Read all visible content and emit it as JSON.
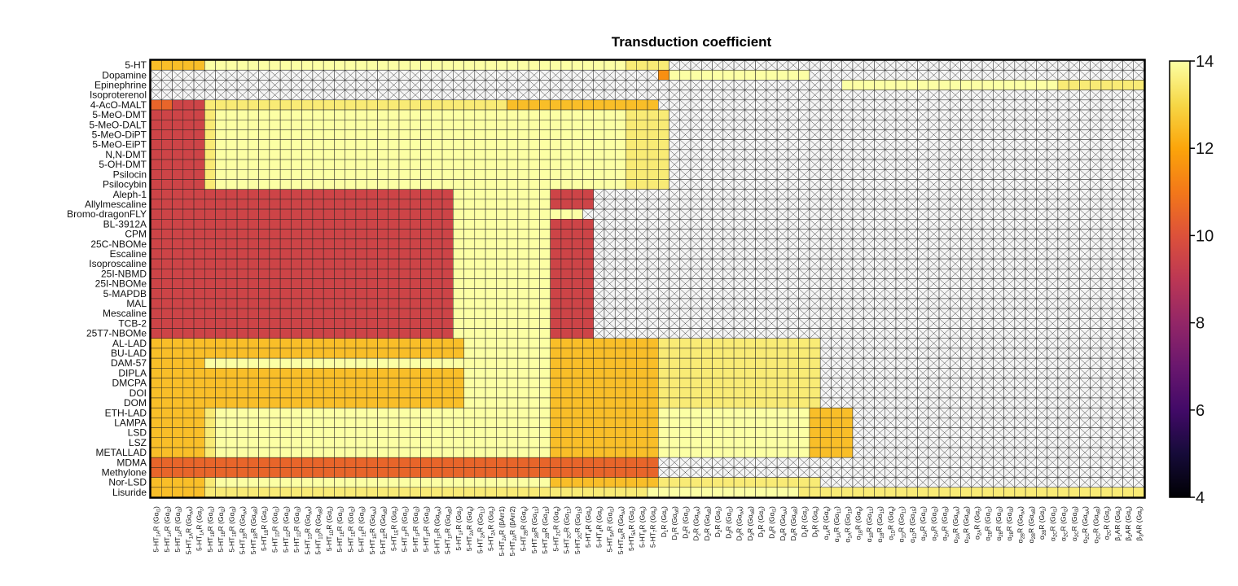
{
  "chart_data": {
    "type": "heatmap",
    "title": "Transduction coefficient",
    "colorbar": {
      "min": 4,
      "max": 14,
      "ticks": [
        4,
        6,
        8,
        10,
        12,
        14
      ],
      "colormap": "inferno",
      "missing": "white cell with black X"
    },
    "rows": [
      "5-HT",
      "Dopamine",
      "Epinephrine",
      "Isoproterenol",
      "4-AcO-MALT",
      "5-MeO-DMT",
      "5-MeO-DALT",
      "5-MeO-DiPT",
      "5-MeO-EiPT",
      "N,N-DMT",
      "5-OH-DMT",
      "Psilocin",
      "Psilocybin",
      "Aleph-1",
      "Allylmescaline",
      "Bromo-dragonFLY",
      "BL-3912A",
      "CPM",
      "25C-NBOMe",
      "Escaline",
      "Isoproscaline",
      "25I-NBMD",
      "25I-NBOMe",
      "5-MAPDB",
      "MAL",
      "Mescaline",
      "TCB-2",
      "25T7-NBOMe",
      "AL-LAD",
      "BU-LAD",
      "DAM-57",
      "DIPLA",
      "DMCPA",
      "DOI",
      "DOM",
      "ETH-LAD",
      "LAMPA",
      "LSD",
      "LSZ",
      "METALLAD",
      "MDMA",
      "Methylone",
      "Nor-LSD",
      "Lisuride"
    ],
    "columns": [
      "5-HT1AR (Gαi1)",
      "5-HT1AR (Gαi2)",
      "5-HT1AR (Gαi3)",
      "5-HT1AR (GαoA)",
      "5-HT1AR (Gαz)",
      "5-HT1BR (Gαi1)",
      "5-HT1BR (Gαi2)",
      "5-HT1BR (Gαi3)",
      "5-HT1BR (GαoA)",
      "5-HT1BR (GαoB)",
      "5-HT1BR (Gαz)",
      "5-HT1DR (Gαi1)",
      "5-HT1DR (Gαi2)",
      "5-HT1DR (Gαi3)",
      "5-HT1DR (GαoA)",
      "5-HT1DR (GαoB)",
      "5-HT1DR (Gαz)",
      "5-HT1ER (Gαi1)",
      "5-HT1ER (Gαi2)",
      "5-HT1ER (Gαi3)",
      "5-HT1ER (GαoA)",
      "5-HT1ER (GαoB)",
      "5-HT1ER (Gαz)",
      "5-HT1FR (Gαi1)",
      "5-HT1FR (Gαi2)",
      "5-HT1FR (Gαi3)",
      "5-HT1FR (GαoA)",
      "5-HT1FR (GαoB)",
      "5-HT1FR (Gαz)",
      "5-HT2AR (Gαq)",
      "5-HT2AR (Gα11)",
      "5-HT2AR (Gαz)",
      "5-HT2AR (βArr1)",
      "5-HT2AR (βArr2)",
      "5-HT2BR (Gαq)",
      "5-HT2BR (Gα11)",
      "5-HT2BR (Gα15)",
      "5-HT2CR (Gαq)",
      "5-HT2CR (Gα11)",
      "5-HT2CR (Gα15)",
      "5-HT4R (Gαs)",
      "5-HT4R (Gαs)",
      "5-HT5AR (Gαi1)",
      "5-HT5AR (GαoA)",
      "5-HT5AR (Gαz)",
      "5-HT6R (Gαs)",
      "5-HT7R (Gαs)",
      "D1R (Gαs)",
      "D1R (Gαolf)",
      "D2R (Gαi1)",
      "D2R (GαoA)",
      "D2R (GαoB)",
      "D2R (Gαz)",
      "D3R (Gαi1)",
      "D3R (GαoA)",
      "D3R (GαoB)",
      "D3R (Gαz)",
      "D4R (Gαi1)",
      "D4R (GαoA)",
      "D4R (GαoB)",
      "D4R (Gαz)",
      "D5R (Gαs)",
      "α1AR (Gαq)",
      "α1AR (Gα11)",
      "α1AR (Gα15)",
      "α1BR (Gαq)",
      "α1BR (Gα11)",
      "α1BR (Gα15)",
      "α1DR (Gαq)",
      "α1DR (Gα11)",
      "α1DR (Gα15)",
      "α2AR (Gαi1)",
      "α2AR (Gαi2)",
      "α2AR (Gαi3)",
      "α2AR (GαoA)",
      "α2AR (GαoB)",
      "α2AR (Gαz)",
      "α2BR (Gαi1)",
      "α2BR (Gαi2)",
      "α2BR (Gαi3)",
      "α2BR (GαoA)",
      "α2BR (GαoB)",
      "α2BR (Gαz)",
      "α2CR (Gαi1)",
      "α2CR (Gαi2)",
      "α2CR (Gαi3)",
      "α2CR (GαoA)",
      "α2CR (GαoB)",
      "α2CR (Gαz)",
      "β1AR (Gαs)",
      "β2AR (Gαs)",
      "β3AR (Gαs)"
    ],
    "column_label_parts": [
      [
        "5-HT",
        "1A",
        "R (Gα",
        "i1",
        ")"
      ],
      [
        "5-HT",
        "1A",
        "R (Gα",
        "i2",
        ")"
      ],
      [
        "5-HT",
        "1A",
        "R (Gα",
        "i3",
        ")"
      ],
      [
        "5-HT",
        "1A",
        "R (Gα",
        "oA",
        ")"
      ],
      [
        "5-HT",
        "1A",
        "R (Gα",
        "z",
        ")"
      ],
      [
        "5-HT",
        "1B",
        "R (Gα",
        "i1",
        ")"
      ],
      [
        "5-HT",
        "1B",
        "R (Gα",
        "i2",
        ")"
      ],
      [
        "5-HT",
        "1B",
        "R (Gα",
        "i3",
        ")"
      ],
      [
        "5-HT",
        "1B",
        "R (Gα",
        "oA",
        ")"
      ],
      [
        "5-HT",
        "1B",
        "R (Gα",
        "oB",
        ")"
      ],
      [
        "5-HT",
        "1B",
        "R (Gα",
        "z",
        ")"
      ],
      [
        "5-HT",
        "1D",
        "R (Gα",
        "i1",
        ")"
      ],
      [
        "5-HT",
        "1D",
        "R (Gα",
        "i2",
        ")"
      ],
      [
        "5-HT",
        "1D",
        "R (Gα",
        "i3",
        ")"
      ],
      [
        "5-HT",
        "1D",
        "R (Gα",
        "oA",
        ")"
      ],
      [
        "5-HT",
        "1D",
        "R (Gα",
        "oB",
        ")"
      ],
      [
        "5-HT",
        "1D",
        "R (Gα",
        "z",
        ")"
      ],
      [
        "5-HT",
        "1E",
        "R (Gα",
        "i1",
        ")"
      ],
      [
        "5-HT",
        "1E",
        "R (Gα",
        "i2",
        ")"
      ],
      [
        "5-HT",
        "1E",
        "R (Gα",
        "i3",
        ")"
      ],
      [
        "5-HT",
        "1E",
        "R (Gα",
        "oA",
        ")"
      ],
      [
        "5-HT",
        "1E",
        "R (Gα",
        "oB",
        ")"
      ],
      [
        "5-HT",
        "1E",
        "R (Gα",
        "z",
        ")"
      ],
      [
        "5-HT",
        "1F",
        "R (Gα",
        "i1",
        ")"
      ],
      [
        "5-HT",
        "1F",
        "R (Gα",
        "i2",
        ")"
      ],
      [
        "5-HT",
        "1F",
        "R (Gα",
        "i3",
        ")"
      ],
      [
        "5-HT",
        "1F",
        "R (Gα",
        "oA",
        ")"
      ],
      [
        "5-HT",
        "1F",
        "R (Gα",
        "oB",
        ")"
      ],
      [
        "5-HT",
        "1F",
        "R (Gα",
        "z",
        ")"
      ],
      [
        "5-HT",
        "2A",
        "R (Gα",
        "q",
        ")"
      ],
      [
        "5-HT",
        "2A",
        "R (Gα",
        "11",
        ")"
      ],
      [
        "5-HT",
        "2A",
        "R (Gα",
        "z",
        ")"
      ],
      [
        "5-HT",
        "2A",
        "R (βArr1)",
        "",
        ""
      ],
      [
        "5-HT",
        "2A",
        "R (βArr2)",
        "",
        ""
      ],
      [
        "5-HT",
        "2B",
        "R (Gα",
        "q",
        ")"
      ],
      [
        "5-HT",
        "2B",
        "R (Gα",
        "11",
        ")"
      ],
      [
        "5-HT",
        "2B",
        "R (Gα",
        "15",
        ")"
      ],
      [
        "5-HT",
        "2C",
        "R (Gα",
        "q",
        ")"
      ],
      [
        "5-HT",
        "2C",
        "R (Gα",
        "11",
        ")"
      ],
      [
        "5-HT",
        "2C",
        "R (Gα",
        "15",
        ")"
      ],
      [
        "5-HT",
        "4",
        "R (Gα",
        "s",
        ")"
      ],
      [
        "5-HT",
        "4",
        "R (Gα",
        "s",
        ")"
      ],
      [
        "5-HT",
        "5A",
        "R (Gα",
        "i1",
        ")"
      ],
      [
        "5-HT",
        "5A",
        "R (Gα",
        "oA",
        ")"
      ],
      [
        "5-HT",
        "5A",
        "R (Gα",
        "z",
        ")"
      ],
      [
        "5-HT",
        "6",
        "R (Gα",
        "s",
        ")"
      ],
      [
        "5-HT",
        "7",
        "R (Gα",
        "s",
        ")"
      ],
      [
        "D",
        "1",
        "R (Gα",
        "s",
        ")"
      ],
      [
        "D",
        "1",
        "R (Gα",
        "olf",
        ")"
      ],
      [
        "D",
        "2",
        "R (Gα",
        "i1",
        ")"
      ],
      [
        "D",
        "2",
        "R (Gα",
        "oA",
        ")"
      ],
      [
        "D",
        "2",
        "R (Gα",
        "oB",
        ")"
      ],
      [
        "D",
        "2",
        "R (Gα",
        "z",
        ")"
      ],
      [
        "D",
        "3",
        "R (Gα",
        "i1",
        ")"
      ],
      [
        "D",
        "3",
        "R (Gα",
        "oA",
        ")"
      ],
      [
        "D",
        "3",
        "R (Gα",
        "oB",
        ")"
      ],
      [
        "D",
        "3",
        "R (Gα",
        "z",
        ")"
      ],
      [
        "D",
        "4",
        "R (Gα",
        "i1",
        ")"
      ],
      [
        "D",
        "4",
        "R (Gα",
        "oA",
        ")"
      ],
      [
        "D",
        "4",
        "R (Gα",
        "oB",
        ")"
      ],
      [
        "D",
        "4",
        "R (Gα",
        "z",
        ")"
      ],
      [
        "D",
        "5",
        "R (Gα",
        "s",
        ")"
      ],
      [
        "α",
        "1A",
        "R (Gα",
        "q",
        ")"
      ],
      [
        "α",
        "1A",
        "R (Gα",
        "11",
        ")"
      ],
      [
        "α",
        "1A",
        "R (Gα",
        "15",
        ")"
      ],
      [
        "α",
        "1B",
        "R (Gα",
        "q",
        ")"
      ],
      [
        "α",
        "1B",
        "R (Gα",
        "11",
        ")"
      ],
      [
        "α",
        "1B",
        "R (Gα",
        "15",
        ")"
      ],
      [
        "α",
        "1D",
        "R (Gα",
        "q",
        ")"
      ],
      [
        "α",
        "1D",
        "R (Gα",
        "11",
        ")"
      ],
      [
        "α",
        "1D",
        "R (Gα",
        "15",
        ")"
      ],
      [
        "α",
        "2A",
        "R (Gα",
        "i1",
        ")"
      ],
      [
        "α",
        "2A",
        "R (Gα",
        "i2",
        ")"
      ],
      [
        "α",
        "2A",
        "R (Gα",
        "i3",
        ")"
      ],
      [
        "α",
        "2A",
        "R (Gα",
        "oA",
        ")"
      ],
      [
        "α",
        "2A",
        "R (Gα",
        "oB",
        ")"
      ],
      [
        "α",
        "2A",
        "R (Gα",
        "z",
        ")"
      ],
      [
        "α",
        "2B",
        "R (Gα",
        "i1",
        ")"
      ],
      [
        "α",
        "2B",
        "R (Gα",
        "i2",
        ")"
      ],
      [
        "α",
        "2B",
        "R (Gα",
        "i3",
        ")"
      ],
      [
        "α",
        "2B",
        "R (Gα",
        "oA",
        ")"
      ],
      [
        "α",
        "2B",
        "R (Gα",
        "oB",
        ")"
      ],
      [
        "α",
        "2B",
        "R (Gα",
        "z",
        ")"
      ],
      [
        "α",
        "2C",
        "R (Gα",
        "i1",
        ")"
      ],
      [
        "α",
        "2C",
        "R (Gα",
        "i2",
        ")"
      ],
      [
        "α",
        "2C",
        "R (Gα",
        "i3",
        ")"
      ],
      [
        "α",
        "2C",
        "R (Gα",
        "oA",
        ")"
      ],
      [
        "α",
        "2C",
        "R (Gα",
        "oB",
        ")"
      ],
      [
        "α",
        "2C",
        "R (Gα",
        "z",
        ")"
      ],
      [
        "β",
        "1",
        "AR (Gα",
        "s",
        ")"
      ],
      [
        "β",
        "2",
        "AR (Gα",
        "s",
        ")"
      ],
      [
        "β",
        "3",
        "AR (Gα",
        "s",
        ")"
      ]
    ],
    "values_note": "Row strings encode approximate coefficient per column: digits 0-9 = 4.5,5.5,...,13.5; '.' = no data (X).",
    "values": [
      "88888ccccccccccccccccccccccccccccccccccccccc9999................................................................",
      "...............................................7aaaaaaaaaaaaa..............................................",
      "................................................................bcbbbbbbbccbbbbbbbbb999999999999999a.....",
      "..................................................................................................99.....",
      "66555999999999999999999999999999988888888888888........................................................",
      "555559bbbbbbbbbbbbbbbbbbbbbbbbbbbbbbbbbbbbbb9999...........................................................",
      "555559bbbbbbbbbbbbbbbbbbbbbbbbbbbbbbbbbbbbbb9999...........................................................",
      "555559bbbbbbbbbbbbbbbbbbbbbbbbbbbbbbbbbbbbbb9999...........................................................",
      "555559bbbbbbbbbbbbbbbbbbbbbbbbbbbbbbbbbbbbbb9999...........................................................",
      "555559bbbbbbbbbbbbbbbbbbbbbbbbbbbbbbbbbbbbbb9999...........................................................",
      "555559bbbbbbbbbbbbbbbbbbbbbbbbbbbbbbbbbbbbbb9999...........................................................",
      "555559bbbbbbbbbbbbbbbbbbbbbbbbbbbbbbbbbbbbbb9999...........................................................",
      "555559bbbbbbbbbbbbbbbbbbbbbbbbbbbbbbbbbbbbbb9999...........................................................",
      "5555555555555555555555555555aaaaaaaaa5555......................................................................",
      "5555555555555555555555555555aaaaaaaaa5555......................................................................",
      "5555555555555555555555555555bbbbbbbbbbbb......................................................................",
      "5555555555555555555555555555aaaaaaaaa5555......................................................................",
      "5555555555555555555555555555aaaaaaaaa5555......................................................................",
      "5555555555555555555555555555bbbbbbbbb5555......................................................................",
      "5555555555555555555555555555aaaaaaaaa5555......................................................................",
      "5555555555555555555555555555aaaaaaaaa5555......................................................................",
      "5555555555555555555555555555aaaaaaaaa5555......................................................................",
      "5555555555555555555555555555aaaaaaaaa5555......................................................................",
      "5555555555555555555555555555aaaaaaaaa5555......................................................................",
      "5555555555555555555555555555aaaaaaaaa5555......................................................................",
      "5555555555555555555555555555aaaaaaaaa5555......................................................................",
      "5555555555555555555555555555aaaaaaaaa5555......................................................................",
      "5555555555555555555555555555bbbbbbbbb5555......................................................................",
      "88888888888888888888888888888cccccccc8888888888999999999999999...................................................",
      "88888888888888888888888888888cccccccc8888888888999999999999999...................................................",
      "88888bbbbbbbbbbbbbbbbbbbbbbbbcccccccc8888888888999999999999999...................................................",
      "88888888888888888888888888888cccccccc8888888888999999999999999...................................................",
      "88888888888888888888888888888cccccccc8888888888999999999999999...................................................",
      "88888888888888888888888888888cccccccc8888888888999999999999999...................................................",
      "88888888888888888888888888888cccccccc8888888888999999999999999...................................................",
      "888889ccccccccccccccccccccccccccccccc8888888888aaaaaaaaaaaaaa8888.........................................",
      "888889ccccccccccccccccccccccccccccccc8888888888aaaaaaaaaaaaaa8888.........................................",
      "888889ccccccccccccccccccccccccccccccc8888888888aaaaaaaaaaaaaa8888.........................................",
      "888889ccccccccccccccccccccccccccccccc8888888888aaaaaaaaaaaaaa8888.........................................",
      "888889ccccccccccccccccccccccccccccccc8888888888aaaaaaaaaaaaaa8888.........................................",
      "66666666666666666666666666666666666666666666666..................................................................",
      "66666666666666666666666666666666666666666666666..................................................................",
      "888889bbbbbbbbbbbbbbbbbbbbbbbbbbbbbbb8888888888999999999999999...................................................",
      "8888899999999999999999999999999999999999999999aaaaaaaaaaaaaa9999999999999999999999999999999999999999999999999"
    ]
  }
}
